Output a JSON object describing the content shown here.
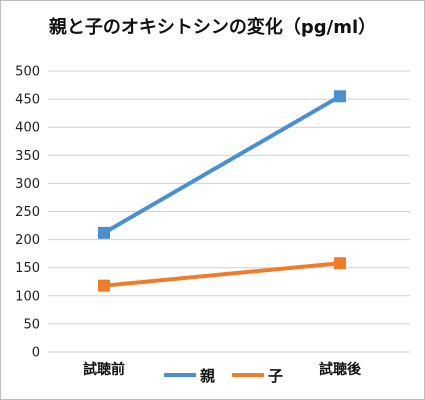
{
  "chart_data": {
    "type": "line",
    "title": "親と子のオキシトシンの変化（pg/ml）",
    "categories": [
      "試聴前",
      "試聴後"
    ],
    "series": [
      {
        "name": "親",
        "values": [
          212,
          455
        ],
        "color": "#4a8fd0"
      },
      {
        "name": "子",
        "values": [
          118,
          158
        ],
        "color": "#f07c2a"
      }
    ],
    "ylim": [
      0,
      500
    ],
    "yticks": [
      0,
      50,
      100,
      150,
      200,
      250,
      300,
      350,
      400,
      450,
      500
    ],
    "grid": true,
    "legend_position": "bottom",
    "xlabel": "",
    "ylabel": ""
  }
}
